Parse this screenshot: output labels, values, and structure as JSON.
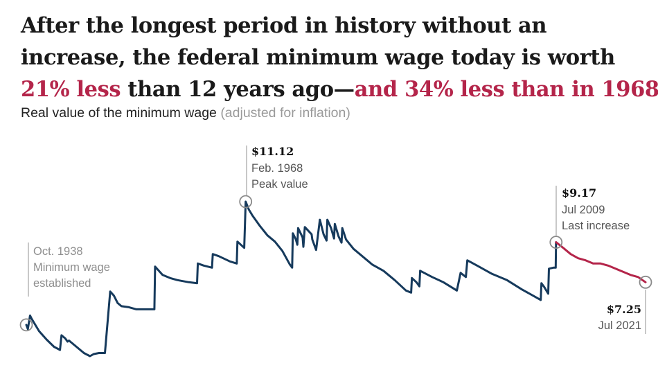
{
  "headline": {
    "line1": "After the longest period in history without an",
    "line2": "increase, the federal minimum wage today is worth",
    "line3_red1": "21% less",
    "line3_mid": " than 12 years ago—",
    "line3_red2": "and 34% less than in 1968."
  },
  "subtitle": {
    "main": "Real value of the minimum wage",
    "muted": "(adjusted for inflation)"
  },
  "colors": {
    "main_line": "#163a5c",
    "recent_line": "#b4254a",
    "marker": "#8a8a8a"
  },
  "annotations": {
    "start": {
      "line1": "Oct. 1938",
      "line2": "Minimum wage",
      "line3": "established"
    },
    "peak": {
      "value": "$11.12",
      "line1": "Feb. 1968",
      "line2": "Peak value"
    },
    "last": {
      "value": "$9.17",
      "line1": "Jul 2009",
      "line2": "Last increase"
    },
    "end": {
      "value": "$7.25",
      "line1": "Jul 2021"
    }
  },
  "chart_data": {
    "type": "line",
    "title": "Real value of the minimum wage (adjusted for inflation)",
    "xlabel": "",
    "ylabel": "",
    "grid": false,
    "ylim": [
      3.6,
      11.6
    ],
    "series": [
      {
        "values": [
          [
            1938.8,
            5.2
          ],
          [
            1939.0,
            5.0
          ],
          [
            1939.3,
            5.65
          ],
          [
            1939.5,
            5.5
          ],
          [
            1940.5,
            4.9
          ],
          [
            1941.5,
            4.5
          ],
          [
            1942.5,
            4.15
          ],
          [
            1943.3,
            4.0
          ],
          [
            1943.5,
            4.7
          ],
          [
            1944.0,
            4.55
          ],
          [
            1944.3,
            4.4
          ],
          [
            1944.5,
            4.45
          ],
          [
            1945.5,
            4.15
          ],
          [
            1946.5,
            3.85
          ],
          [
            1947.3,
            3.7
          ],
          [
            1947.8,
            3.8
          ],
          [
            1948.5,
            3.85
          ],
          [
            1949.3,
            3.85
          ],
          [
            1950.0,
            6.8
          ],
          [
            1950.5,
            6.6
          ],
          [
            1951.0,
            6.25
          ],
          [
            1951.5,
            6.1
          ],
          [
            1952.5,
            6.05
          ],
          [
            1953.5,
            5.95
          ],
          [
            1955.0,
            5.95
          ],
          [
            1955.9,
            5.95
          ],
          [
            1956.0,
            8.0
          ],
          [
            1957.0,
            7.6
          ],
          [
            1958.0,
            7.45
          ],
          [
            1959.0,
            7.35
          ],
          [
            1960.5,
            7.25
          ],
          [
            1961.6,
            7.2
          ],
          [
            1961.7,
            8.15
          ],
          [
            1962.5,
            8.05
          ],
          [
            1963.6,
            7.95
          ],
          [
            1963.7,
            8.6
          ],
          [
            1964.5,
            8.5
          ],
          [
            1966.0,
            8.25
          ],
          [
            1966.9,
            8.15
          ],
          [
            1967.0,
            9.2
          ],
          [
            1967.9,
            8.9
          ],
          [
            1968.1,
            11.12
          ],
          [
            1968.5,
            10.75
          ],
          [
            1969.0,
            10.45
          ],
          [
            1970.0,
            9.95
          ],
          [
            1971.0,
            9.5
          ],
          [
            1972.0,
            9.2
          ],
          [
            1973.0,
            8.75
          ],
          [
            1974.0,
            8.1
          ],
          [
            1974.3,
            7.95
          ],
          [
            1974.4,
            9.6
          ],
          [
            1974.8,
            9.3
          ],
          [
            1975.0,
            9.05
          ],
          [
            1975.1,
            9.85
          ],
          [
            1975.7,
            9.4
          ],
          [
            1975.8,
            8.95
          ],
          [
            1976.0,
            9.9
          ],
          [
            1976.9,
            9.55
          ],
          [
            1977.0,
            9.3
          ],
          [
            1977.5,
            8.8
          ],
          [
            1978.0,
            10.25
          ],
          [
            1978.5,
            9.55
          ],
          [
            1978.9,
            9.25
          ],
          [
            1979.0,
            10.25
          ],
          [
            1979.5,
            9.85
          ],
          [
            1979.9,
            9.35
          ],
          [
            1980.0,
            10.05
          ],
          [
            1980.5,
            9.45
          ],
          [
            1980.9,
            9.15
          ],
          [
            1981.0,
            9.85
          ],
          [
            1981.5,
            9.3
          ],
          [
            1982.5,
            8.85
          ],
          [
            1983.5,
            8.55
          ],
          [
            1985.0,
            8.1
          ],
          [
            1986.5,
            7.8
          ],
          [
            1988.0,
            7.35
          ],
          [
            1989.5,
            6.85
          ],
          [
            1990.2,
            6.75
          ],
          [
            1990.3,
            7.45
          ],
          [
            1990.9,
            7.25
          ],
          [
            1991.3,
            7.05
          ],
          [
            1991.4,
            7.8
          ],
          [
            1993.0,
            7.5
          ],
          [
            1994.5,
            7.25
          ],
          [
            1996.3,
            6.85
          ],
          [
            1996.8,
            7.7
          ],
          [
            1997.5,
            7.5
          ],
          [
            1997.7,
            8.3
          ],
          [
            1999.0,
            8.05
          ],
          [
            2001.0,
            7.65
          ],
          [
            2003.0,
            7.35
          ],
          [
            2005.0,
            6.9
          ],
          [
            2006.5,
            6.6
          ],
          [
            2007.5,
            6.4
          ],
          [
            2007.6,
            7.2
          ],
          [
            2008.0,
            7.0
          ],
          [
            2008.5,
            6.7
          ],
          [
            2008.6,
            7.9
          ],
          [
            2009.2,
            7.95
          ],
          [
            2009.5,
            7.95
          ],
          [
            2009.55,
            9.17
          ]
        ]
      },
      {
        "values": [
          [
            2009.55,
            9.17
          ],
          [
            2010.5,
            8.9
          ],
          [
            2011.5,
            8.6
          ],
          [
            2012.5,
            8.4
          ],
          [
            2013.5,
            8.3
          ],
          [
            2014.5,
            8.15
          ],
          [
            2015.5,
            8.15
          ],
          [
            2016.5,
            8.05
          ],
          [
            2017.5,
            7.9
          ],
          [
            2018.5,
            7.75
          ],
          [
            2019.5,
            7.6
          ],
          [
            2020.5,
            7.5
          ],
          [
            2021.5,
            7.25
          ]
        ]
      }
    ]
  }
}
